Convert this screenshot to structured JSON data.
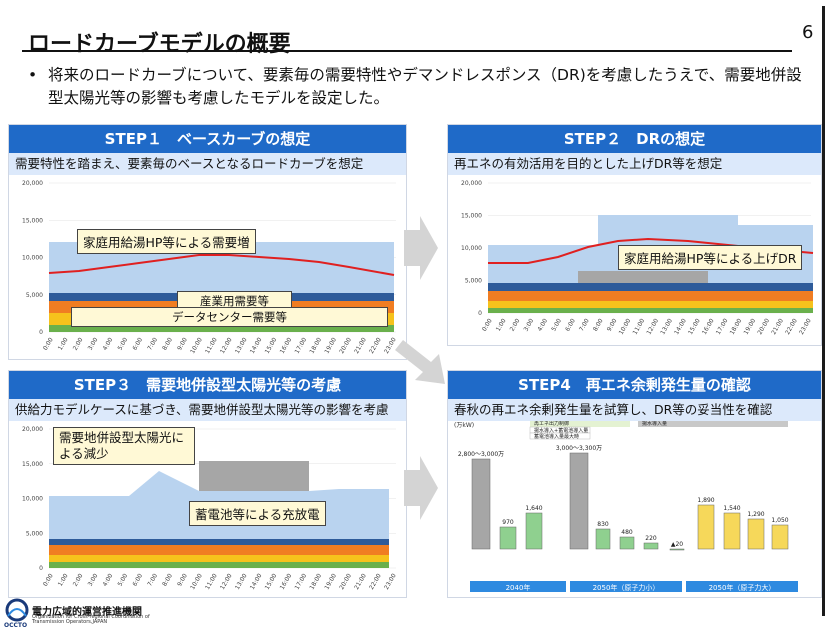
{
  "page": {
    "title": "ロードカーブモデルの概要",
    "number": "6",
    "bullet": "将来のロードカーブについて、要素毎の需要特性やデマンドレスポンス（DR)を考慮したうえで、需要地併設型太陽光等の影響も考慮したモデルを設定した。"
  },
  "colors": {
    "header_blue": "#1f6ac8",
    "sub_bg": "#dce9fb",
    "light_blue": "#b9d3ef",
    "dark_blue": "#2e5b9a",
    "orange": "#f07d22",
    "yellow": "#f6c21c",
    "green": "#6ab04c",
    "red_line": "#e02020",
    "gray": "#a6a6a6"
  },
  "steps": [
    {
      "title": "STEP１　ベースカーブの想定",
      "desc": "需要特性を踏まえ、要素毎のベースとなるロードカーブを想定",
      "callouts": [
        "家庭用給湯HP等による需要増",
        "産業用需要等",
        "データセンター需要等"
      ]
    },
    {
      "title": "STEP２　DRの想定",
      "desc": "再エネの有効活用を目的とした上げDR等を想定",
      "callouts": [
        "家庭用給湯HP等による上げDR"
      ]
    },
    {
      "title": "STEP３　需要地併設型太陽光等の考慮",
      "desc": "供給力モデルケースに基づき、需要地併設型太陽光等の影響を考慮",
      "callouts": [
        "需要地併設型太陽光による減少",
        "蓄電池等による充放電"
      ]
    },
    {
      "title": "STEP4　再エネ余剰発生量の確認",
      "desc": "春秋の再エネ余剰発生量を試算し、DR等の妥当性を確認"
    }
  ],
  "load_chart": {
    "y_ticks": [
      "20,000",
      "15,000",
      "10,000",
      "5,000",
      "0"
    ],
    "x_ticks": [
      "0:00",
      "1:00",
      "2:00",
      "3:00",
      "4:00",
      "5:00",
      "6:00",
      "7:00",
      "8:00",
      "9:00",
      "10:00",
      "11:00",
      "12:00",
      "13:00",
      "14:00",
      "15:00",
      "16:00",
      "17:00",
      "18:00",
      "19:00",
      "20:00",
      "21:00",
      "22:00",
      "23:00"
    ]
  },
  "step4_chart": {
    "unit": "(万kW)",
    "legend": [
      "再エネ出力制御",
      "揚水導入量",
      "揚水導入+蓄電池導入量",
      "蓄電池導入量最大時"
    ],
    "bar_labels": [
      "2,800〜3,000万",
      "970",
      "1,640",
      "3,000〜3,300万",
      "830",
      "480",
      "220",
      "▲20",
      "1,890",
      "1,540",
      "1,290",
      "1,050"
    ],
    "groups": [
      "2040年",
      "2050年（原子力小）",
      "2050年（原子力大）"
    ]
  },
  "org": {
    "name": "電力広域的運営推進機関",
    "name_en": "Organization for Cross-regional Coordination of Transmission Operators,JAPAN",
    "short": "OCCTO"
  }
}
